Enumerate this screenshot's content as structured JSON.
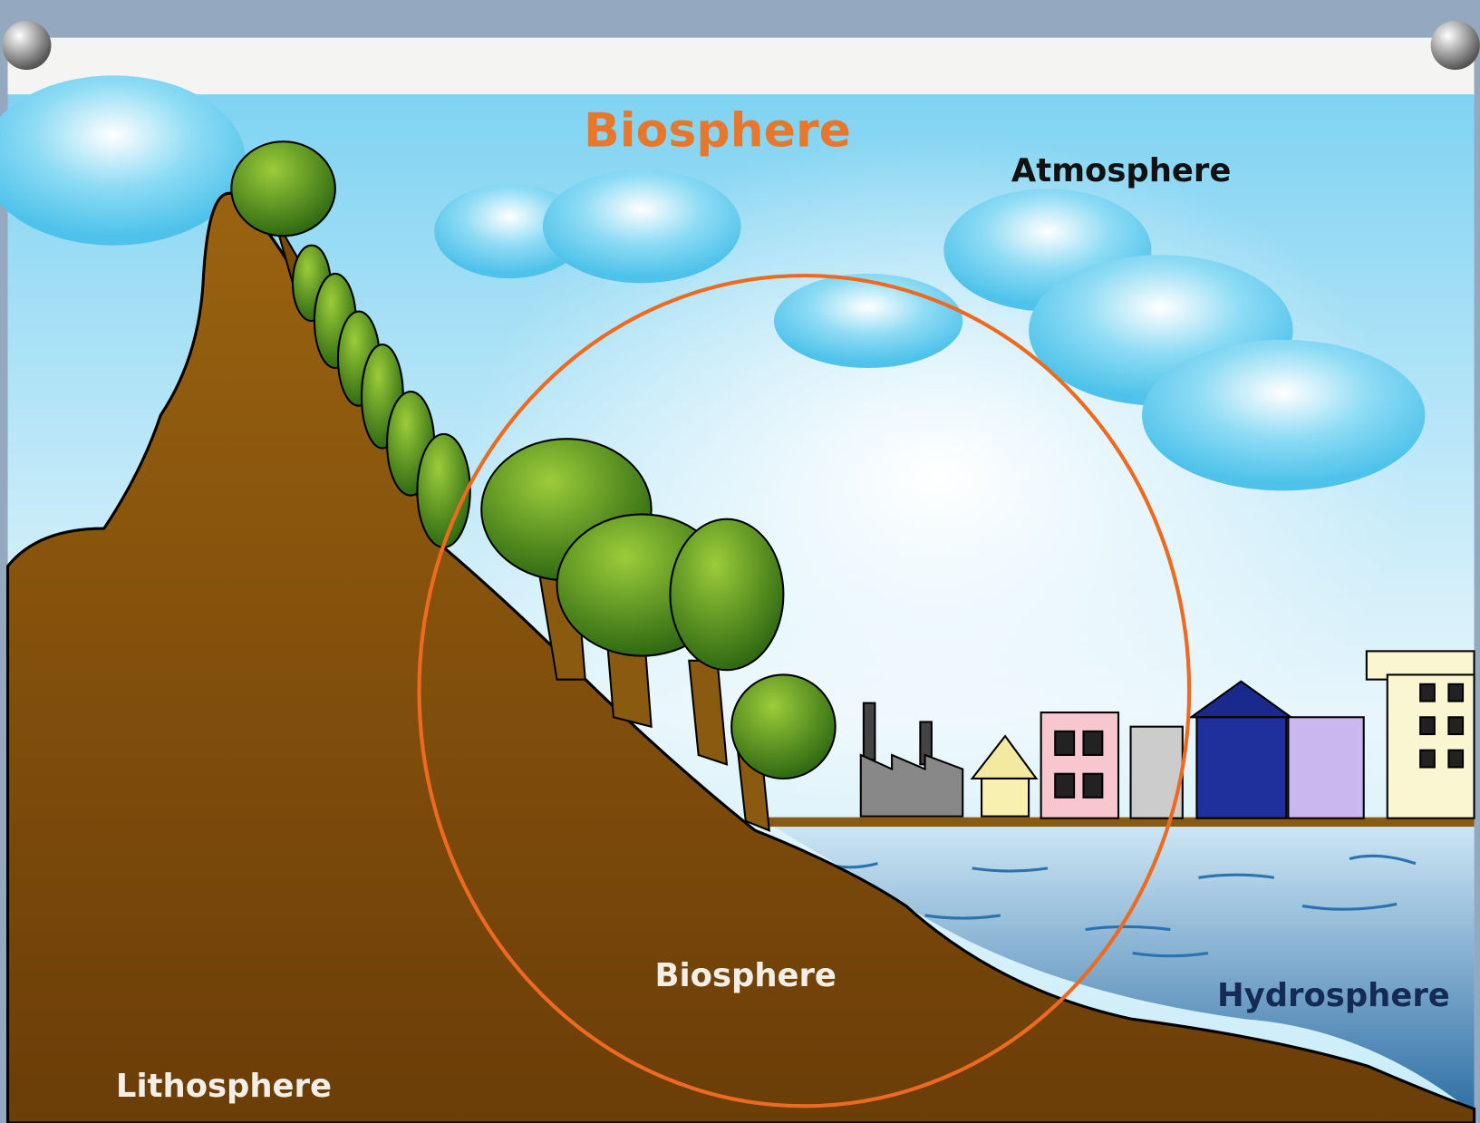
{
  "diagram": {
    "title": "Biosphere",
    "labels": {
      "atmosphere": "Atmosphere",
      "biosphere": "Biosphere",
      "hydrosphere": "Hydrosphere",
      "lithosphere": "Lithosphere"
    }
  }
}
